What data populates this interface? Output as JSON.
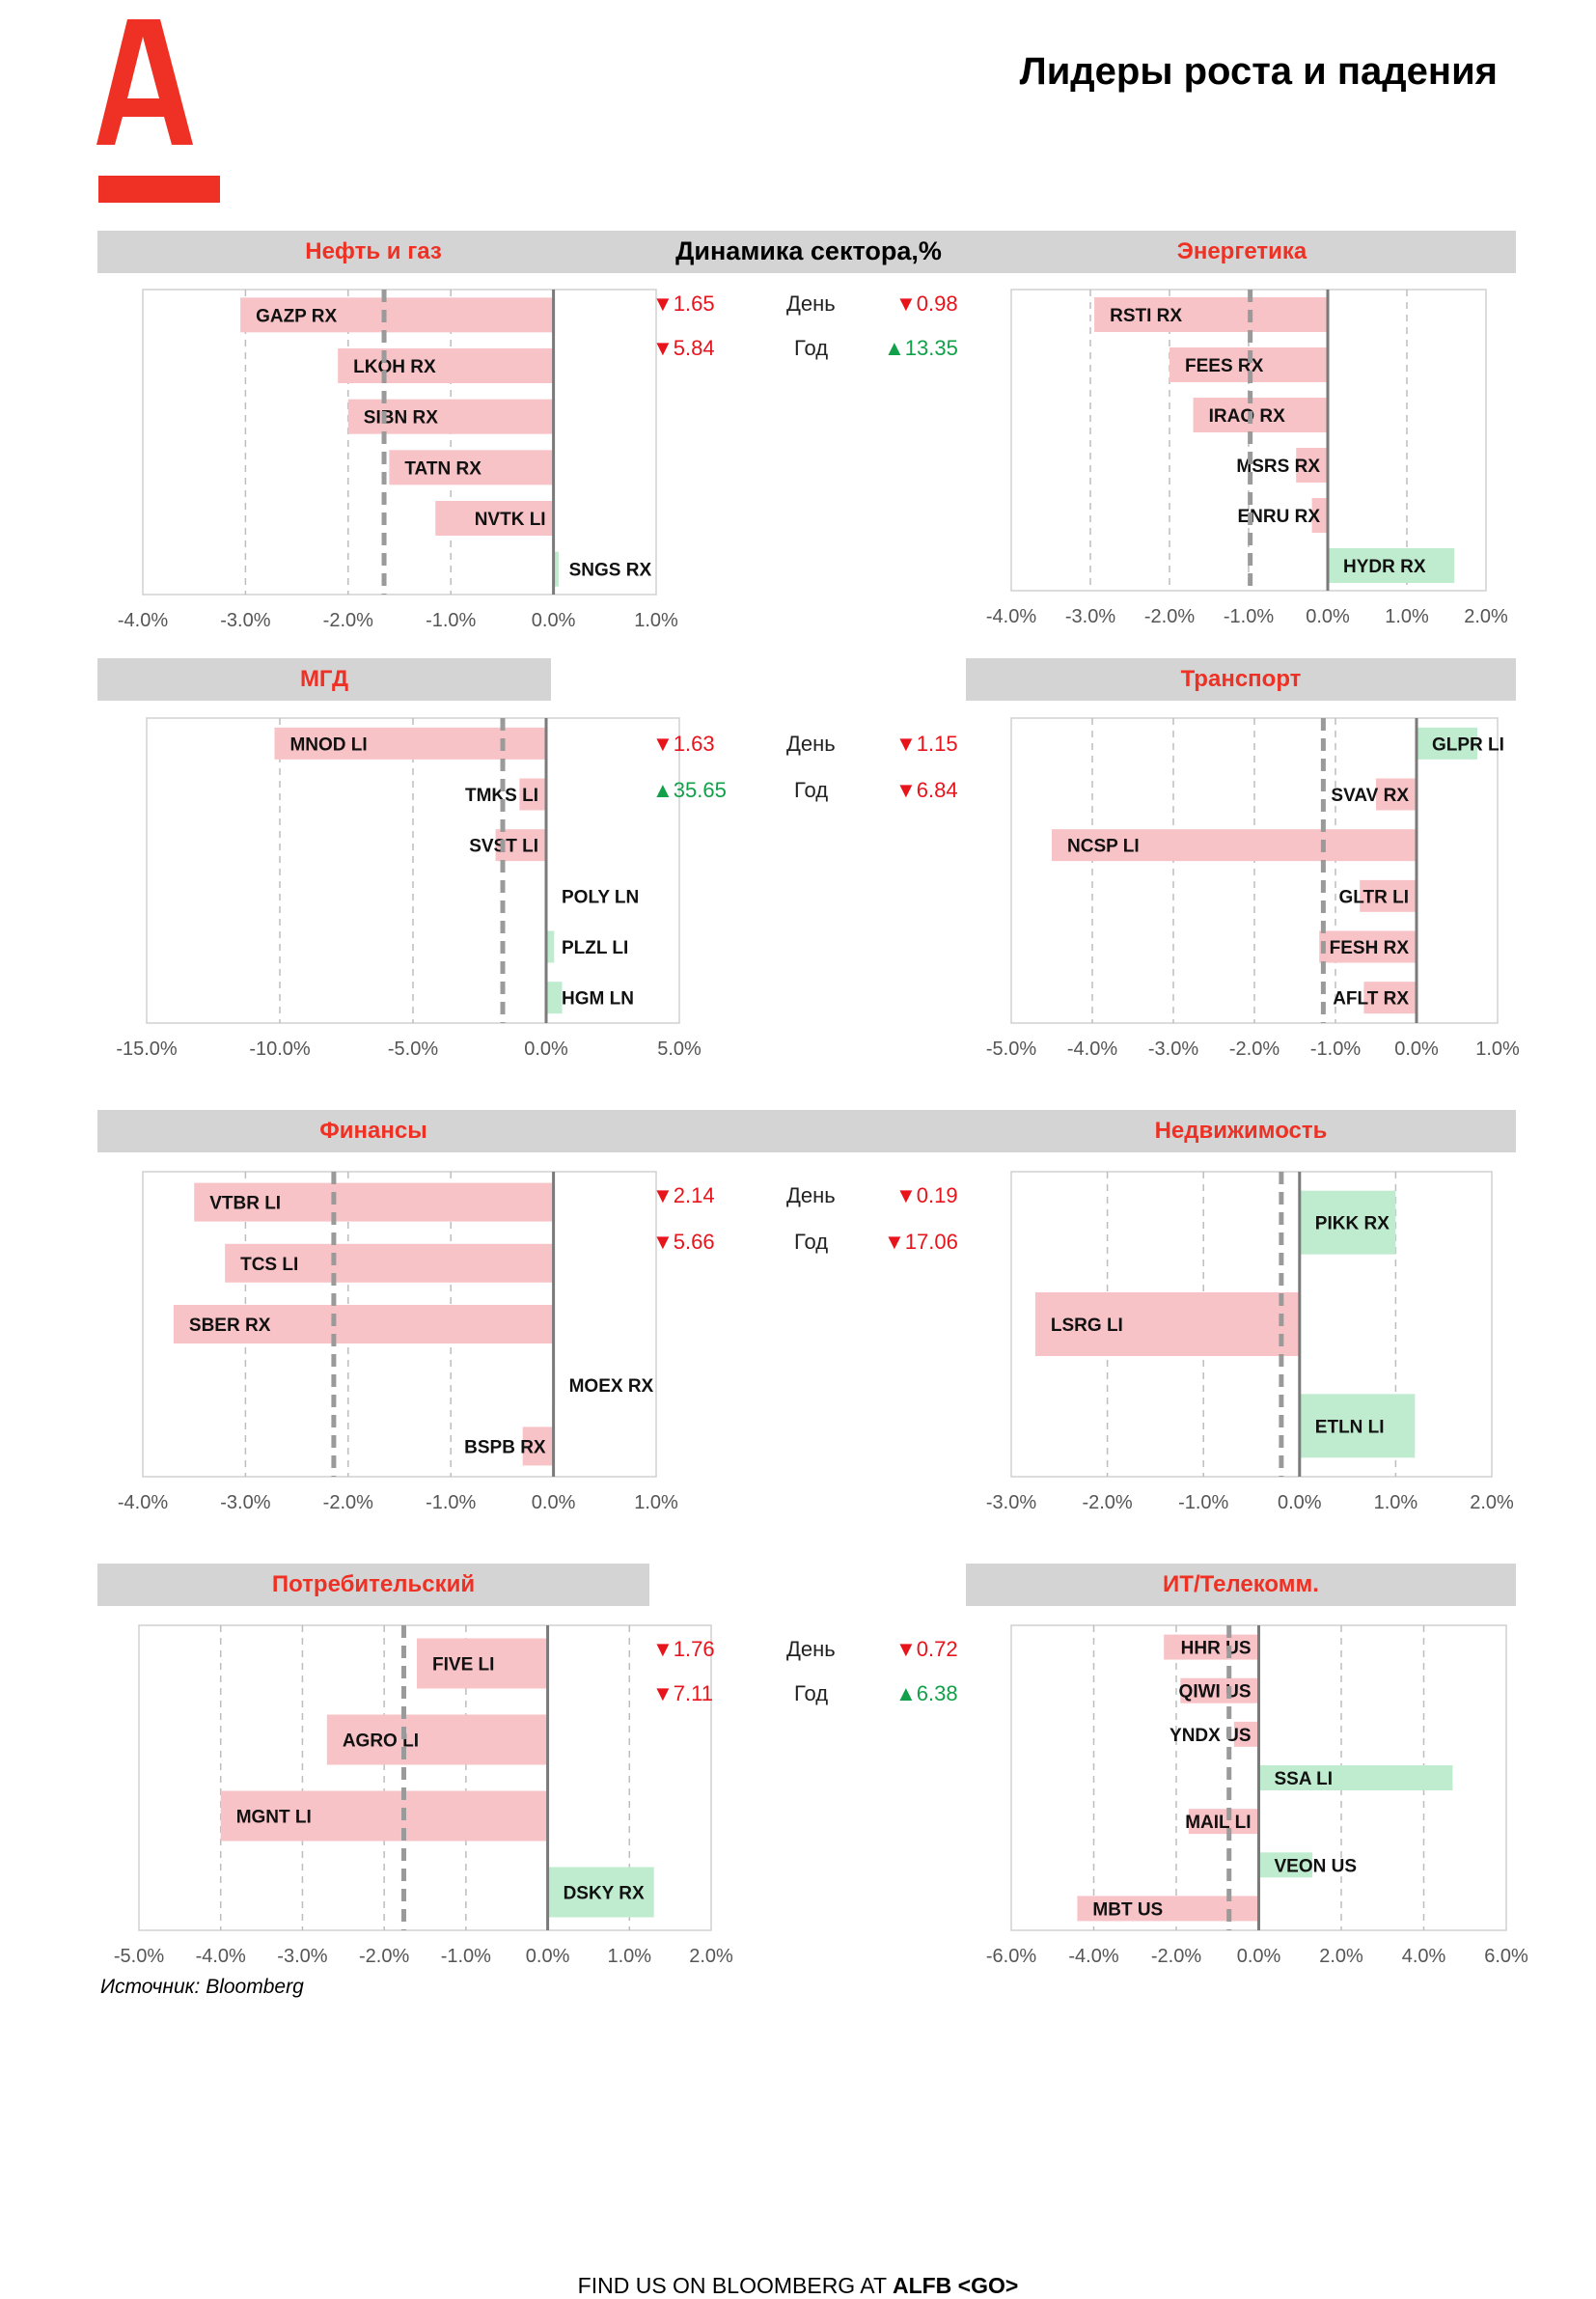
{
  "header": {
    "title": "Лидеры роста и падения",
    "logo_letter": "A"
  },
  "colors": {
    "brand_red": "#ee3124",
    "neg_bar": "#f8c3c7",
    "pos_bar": "#bfeccf",
    "down": "#e8141c",
    "up": "#12a04a"
  },
  "dynamics": {
    "title": "Динамика сектора,%",
    "day_label": "День",
    "year_label": "Год",
    "rows": [
      {
        "id": "r1",
        "left_day": "1.65",
        "left_day_dir": "down",
        "right_day": "0.98",
        "right_day_dir": "down",
        "left_year": "5.84",
        "left_year_dir": "down",
        "right_year": "13.35",
        "right_year_dir": "up"
      },
      {
        "id": "r2",
        "left_day": "1.63",
        "left_day_dir": "down",
        "right_day": "1.15",
        "right_day_dir": "down",
        "left_year": "35.65",
        "left_year_dir": "up",
        "right_year": "6.84",
        "right_year_dir": "down"
      },
      {
        "id": "r3",
        "left_day": "2.14",
        "left_day_dir": "down",
        "right_day": "0.19",
        "right_day_dir": "down",
        "left_year": "5.66",
        "left_year_dir": "down",
        "right_year": "17.06",
        "right_year_dir": "down"
      },
      {
        "id": "r4",
        "left_day": "1.76",
        "left_day_dir": "down",
        "right_day": "0.72",
        "right_day_dir": "down",
        "left_year": "7.11",
        "left_year_dir": "down",
        "right_year": "6.38",
        "right_year_dir": "up"
      }
    ]
  },
  "source": "Источник: Bloomberg",
  "footer": {
    "text": "FIND US ON BLOOMBERG AT ",
    "bold": "ALFB <GO>"
  },
  "chart_data": [
    {
      "id": "oilgas",
      "title": "Нефть и газ",
      "type": "bar",
      "orientation": "horizontal",
      "categories": [
        "GAZP RX",
        "LKOH RX",
        "SIBN RX",
        "TATN RX",
        "NVTK LI",
        "SNGS RX"
      ],
      "values": [
        -3.05,
        -2.1,
        -2.0,
        -1.6,
        -1.15,
        0.05
      ],
      "average": -1.65,
      "xlim": [
        -4,
        1
      ],
      "ticks": [
        -4,
        -3,
        -2,
        -1,
        0,
        1
      ],
      "tick_labels": [
        "-4.0%",
        "-3.0%",
        "-2.0%",
        "-1.0%",
        "0.0%",
        "1.0%"
      ]
    },
    {
      "id": "energy",
      "title": "Энергетика",
      "type": "bar",
      "orientation": "horizontal",
      "categories": [
        "RSTI RX",
        "FEES RX",
        "IRAO RX",
        "MSRS RX",
        "ENRU RX",
        "HYDR RX"
      ],
      "values": [
        -2.95,
        -2.0,
        -1.7,
        -0.4,
        -0.2,
        1.6
      ],
      "average": -0.98,
      "xlim": [
        -4,
        2
      ],
      "ticks": [
        -4,
        -3,
        -2,
        -1,
        0,
        1,
        2
      ],
      "tick_labels": [
        "-4.0%",
        "-3.0%",
        "-2.0%",
        "-1.0%",
        "0.0%",
        "1.0%",
        "2.0%"
      ]
    },
    {
      "id": "metals",
      "title": "МГД",
      "type": "bar",
      "orientation": "horizontal",
      "categories": [
        "MNOD LI",
        "TMKS LI",
        "SVST LI",
        "POLY LN",
        "PLZL LI",
        "HGM LN"
      ],
      "values": [
        -10.2,
        -1.0,
        -1.9,
        0.0,
        0.3,
        0.6
      ],
      "average": -1.63,
      "xlim": [
        -15,
        5
      ],
      "ticks": [
        -15,
        -10,
        -5,
        0,
        5
      ],
      "tick_labels": [
        "-15.0%",
        "-10.0%",
        "-5.0%",
        "0.0%",
        "5.0%"
      ]
    },
    {
      "id": "transport",
      "title": "Транспорт",
      "type": "bar",
      "orientation": "horizontal",
      "categories": [
        "GLPR LI",
        "SVAV RX",
        "NCSP LI",
        "GLTR LI",
        "FESH RX",
        "AFLT RX"
      ],
      "values": [
        0.75,
        -0.5,
        -4.5,
        -0.7,
        -1.2,
        -0.65
      ],
      "average": -1.15,
      "xlim": [
        -5,
        1
      ],
      "ticks": [
        -5,
        -4,
        -3,
        -2,
        -1,
        0,
        1
      ],
      "tick_labels": [
        "-5.0%",
        "-4.0%",
        "-3.0%",
        "-2.0%",
        "-1.0%",
        "0.0%",
        "1.0%"
      ]
    },
    {
      "id": "finance",
      "title": "Финансы",
      "type": "bar",
      "orientation": "horizontal",
      "categories": [
        "VTBR LI",
        "TCS LI",
        "SBER RX",
        "MOEX RX",
        "BSPB RX"
      ],
      "values": [
        -3.5,
        -3.2,
        -3.7,
        0.0,
        -0.3
      ],
      "average": -2.14,
      "xlim": [
        -4,
        1
      ],
      "ticks": [
        -4,
        -3,
        -2,
        -1,
        0,
        1
      ],
      "tick_labels": [
        "-4.0%",
        "-3.0%",
        "-2.0%",
        "-1.0%",
        "0.0%",
        "1.0%"
      ]
    },
    {
      "id": "realestate",
      "title": "Недвижимость",
      "type": "bar",
      "orientation": "horizontal",
      "categories": [
        "PIKK RX",
        "LSRG LI",
        "ETLN LI"
      ],
      "values": [
        1.0,
        -2.75,
        1.2
      ],
      "average": -0.19,
      "xlim": [
        -3,
        2
      ],
      "ticks": [
        -3,
        -2,
        -1,
        0,
        1,
        2
      ],
      "tick_labels": [
        "-3.0%",
        "-2.0%",
        "-1.0%",
        "0.0%",
        "1.0%",
        "2.0%"
      ]
    },
    {
      "id": "consumer",
      "title": "Потребительский",
      "type": "bar",
      "orientation": "horizontal",
      "categories": [
        "FIVE LI",
        "AGRO LI",
        "MGNT LI",
        "DSKY RX"
      ],
      "values": [
        -1.6,
        -2.7,
        -4.0,
        1.3
      ],
      "average": -1.76,
      "xlim": [
        -5,
        2
      ],
      "ticks": [
        -5,
        -4,
        -3,
        -2,
        -1,
        0,
        1,
        2
      ],
      "tick_labels": [
        "-5.0%",
        "-4.0%",
        "-3.0%",
        "-2.0%",
        "-1.0%",
        "0.0%",
        "1.0%",
        "2.0%"
      ]
    },
    {
      "id": "ittelecom",
      "title": "ИТ/Телекомм.",
      "type": "bar",
      "orientation": "horizontal",
      "categories": [
        "HHR US",
        "QIWI US",
        "YNDX US",
        "SSA LI",
        "MAIL LI",
        "VEON US",
        "MBT US"
      ],
      "values": [
        -2.3,
        -1.9,
        -0.6,
        4.7,
        -1.7,
        1.3,
        -4.4
      ],
      "average": -0.72,
      "xlim": [
        -6,
        6
      ],
      "ticks": [
        -6,
        -4,
        -2,
        0,
        2,
        4,
        6
      ],
      "tick_labels": [
        "-6.0%",
        "-4.0%",
        "-2.0%",
        "0.0%",
        "2.0%",
        "4.0%",
        "6.0%"
      ]
    }
  ]
}
